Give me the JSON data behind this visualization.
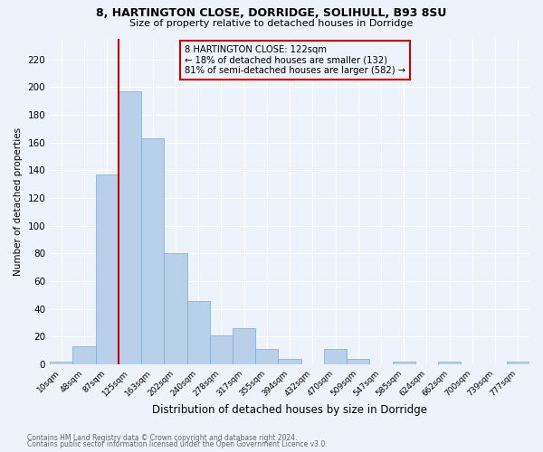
{
  "title_line1": "8, HARTINGTON CLOSE, DORRIDGE, SOLIHULL, B93 8SU",
  "title_line2": "Size of property relative to detached houses in Dorridge",
  "xlabel": "Distribution of detached houses by size in Dorridge",
  "ylabel": "Number of detached properties",
  "bar_color": "#b8d0ea",
  "bar_edge_color": "#7aadd4",
  "bin_labels": [
    "10sqm",
    "48sqm",
    "87sqm",
    "125sqm",
    "163sqm",
    "202sqm",
    "240sqm",
    "278sqm",
    "317sqm",
    "355sqm",
    "394sqm",
    "432sqm",
    "470sqm",
    "509sqm",
    "547sqm",
    "585sqm",
    "624sqm",
    "662sqm",
    "700sqm",
    "739sqm",
    "777sqm"
  ],
  "bar_values": [
    2,
    13,
    137,
    197,
    163,
    80,
    46,
    21,
    26,
    11,
    4,
    0,
    11,
    4,
    0,
    2,
    0,
    2,
    0,
    0,
    2
  ],
  "vline_color": "#cc0000",
  "annotation_text": "8 HARTINGTON CLOSE: 122sqm\n← 18% of detached houses are smaller (132)\n81% of semi-detached houses are larger (582) →",
  "annotation_box_color": "#cc0000",
  "ylim_max": 235,
  "yticks": [
    0,
    20,
    40,
    60,
    80,
    100,
    120,
    140,
    160,
    180,
    200,
    220
  ],
  "footnote1": "Contains HM Land Registry data © Crown copyright and database right 2024.",
  "footnote2": "Contains public sector information licensed under the Open Government Licence v3.0.",
  "background_color": "#eef2fa",
  "grid_color": "#ffffff"
}
